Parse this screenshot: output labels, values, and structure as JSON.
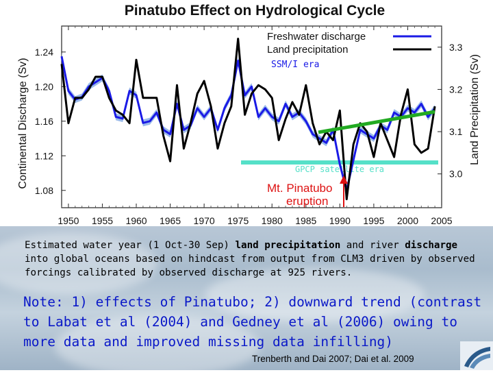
{
  "chart_data": {
    "type": "line",
    "title": "Pinatubo Effect on Hydrological Cycle",
    "ylabel_left": "Continental Discharge (Sv)",
    "ylabel_right": "Land Precipitation (Sv)",
    "x_ticks": [
      "1950",
      "1955",
      "1960",
      "1965",
      "1970",
      "1975",
      "1980",
      "1985",
      "1990",
      "1995",
      "2000",
      "2005"
    ],
    "y_ticks_left": [
      "1.24",
      "1.20",
      "1.16",
      "1.12",
      "1.08"
    ],
    "y_ticks_right": [
      "3.3",
      "3.2",
      "3.1",
      "3.0"
    ],
    "xlim": [
      1949,
      2005
    ],
    "ylim_left": [
      1.06,
      1.27
    ],
    "ylim_right": [
      2.92,
      3.35
    ],
    "series": [
      {
        "name": "Freshwater discharge",
        "color": "#1a1ae6",
        "x": [
          1949,
          1950,
          1951,
          1952,
          1953,
          1954,
          1955,
          1956,
          1957,
          1958,
          1959,
          1960,
          1961,
          1962,
          1963,
          1964,
          1965,
          1966,
          1967,
          1968,
          1969,
          1970,
          1971,
          1972,
          1973,
          1974,
          1975,
          1976,
          1977,
          1978,
          1979,
          1980,
          1981,
          1982,
          1983,
          1984,
          1985,
          1986,
          1987,
          1988,
          1989,
          1990,
          1991,
          1992,
          1993,
          1994,
          1995,
          1996,
          1997,
          1998,
          1999,
          2000,
          2001,
          2002,
          2003,
          2004
        ],
        "values": [
          1.235,
          1.195,
          1.185,
          1.188,
          1.2,
          1.205,
          1.21,
          1.195,
          1.165,
          1.163,
          1.195,
          1.19,
          1.158,
          1.16,
          1.17,
          1.15,
          1.145,
          1.18,
          1.15,
          1.155,
          1.175,
          1.165,
          1.175,
          1.15,
          1.175,
          1.19,
          1.23,
          1.19,
          1.2,
          1.165,
          1.175,
          1.165,
          1.16,
          1.18,
          1.165,
          1.17,
          1.16,
          1.145,
          1.14,
          1.135,
          1.15,
          1.11,
          1.08,
          1.115,
          1.15,
          1.145,
          1.14,
          1.155,
          1.15,
          1.17,
          1.165,
          1.175,
          1.17,
          1.18,
          1.165,
          1.175
        ]
      },
      {
        "name": "Land precipitation",
        "color": "#000000",
        "x": [
          1949,
          1950,
          1951,
          1952,
          1953,
          1954,
          1955,
          1956,
          1957,
          1958,
          1959,
          1960,
          1961,
          1962,
          1963,
          1964,
          1965,
          1966,
          1967,
          1968,
          1969,
          1970,
          1971,
          1972,
          1973,
          1974,
          1975,
          1976,
          1977,
          1978,
          1979,
          1980,
          1981,
          1982,
          1983,
          1984,
          1985,
          1986,
          1987,
          1988,
          1989,
          1990,
          1991,
          1992,
          1993,
          1994,
          1995,
          1996,
          1997,
          1998,
          1999,
          2000,
          2001,
          2002,
          2003,
          2004
        ],
        "values": [
          3.26,
          3.12,
          3.18,
          3.18,
          3.2,
          3.23,
          3.23,
          3.18,
          3.15,
          3.14,
          3.12,
          3.27,
          3.18,
          3.18,
          3.18,
          3.09,
          3.03,
          3.21,
          3.06,
          3.12,
          3.19,
          3.22,
          3.16,
          3.06,
          3.12,
          3.16,
          3.32,
          3.14,
          3.19,
          3.21,
          3.2,
          3.18,
          3.08,
          3.13,
          3.17,
          3.14,
          3.21,
          3.12,
          3.07,
          3.1,
          3.08,
          3.15,
          2.94,
          3.07,
          3.12,
          3.1,
          3.04,
          3.12,
          3.08,
          3.04,
          3.14,
          3.2,
          3.07,
          3.05,
          3.06,
          3.16
        ]
      }
    ],
    "annotations": {
      "ssmi": "SSM/I era",
      "gpcp": "GPCP satellite era",
      "pinatubo_line1": "Mt. Pinatubo",
      "pinatubo_line2": "eruption"
    }
  },
  "caption": {
    "part1": "Estimated water year (1 Oct-30 Sep) ",
    "bold1": "land precipitation",
    "part2": " and river ",
    "bold2": "discharge",
    "part3": " into global oceans based on hindcast from output from CLM3 driven by observed forcings calibrated by observed discharge at 925 rivers."
  },
  "note": "Note: 1) effects of Pinatubo; 2) downward trend (contrast to Labat et al (2004) and Gedney et al (2006) owing to more data and improved missing data infilling)",
  "credit": "Trenberth and Dai 2007; Dai et al. 2009",
  "colors": {
    "discharge": "#1a1ae6",
    "discharge_band": "#8fb3e8",
    "precipitation": "#000000",
    "trend": "#22aa22",
    "gpcp_bar": "#55e0c8",
    "eruption": "#dd1111",
    "note_text": "#0a18c8"
  }
}
